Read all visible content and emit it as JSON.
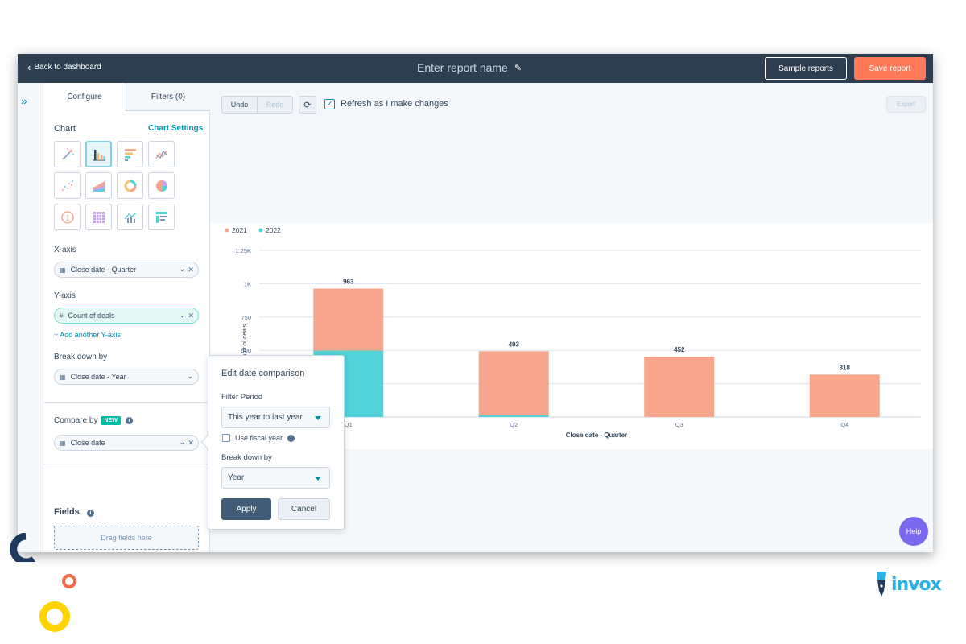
{
  "topbar": {
    "back_label": "Back to dashboard",
    "report_name": "Enter report name",
    "sample_reports_label": "Sample reports",
    "save_report_label": "Save report"
  },
  "sidebar": {
    "tabs": [
      {
        "label": "Configure",
        "active": true
      },
      {
        "label": "Filters (0)",
        "active": false
      }
    ],
    "chart_label": "Chart",
    "chart_settings_label": "Chart Settings",
    "chart_types": [
      "magic-wand",
      "vertical-bar",
      "horizontal-bar",
      "line",
      "scatter",
      "area",
      "donut",
      "pie",
      "summary",
      "pivot-table",
      "combination",
      "table"
    ],
    "selected_chart_type": "vertical-bar",
    "x_axis_label": "X-axis",
    "x_axis_value": "Close date - Quarter",
    "y_axis_label": "Y-axis",
    "y_axis_value": "Count of deals",
    "add_y_axis_label": "Add another Y-axis",
    "break_down_label": "Break down by",
    "break_down_value": "Close date - Year",
    "compare_label": "Compare by",
    "new_badge": "NEW",
    "compare_value": "Close date",
    "fields_label": "Fields",
    "drag_fields_label": "Drag fields here"
  },
  "toolbar": {
    "undo_label": "Undo",
    "redo_label": "Redo",
    "refresh_checkbox_label": "Refresh as I make changes",
    "refresh_checked": true,
    "export_label": "Export"
  },
  "popover": {
    "title": "Edit date comparison",
    "filter_period_label": "Filter Period",
    "filter_period_value": "This year to last year",
    "fiscal_year_label": "Use fiscal year",
    "fiscal_year_checked": false,
    "break_down_label": "Break down by",
    "break_down_value": "Year",
    "apply_label": "Apply",
    "cancel_label": "Cancel"
  },
  "help_label": "Help",
  "logo_text": "invox",
  "colors": {
    "series_2021": "#f8a58d",
    "series_2022": "#51d3d9",
    "accent": "#0091ae",
    "save": "#ff7a59",
    "topbar": "#2d3e50"
  },
  "chart_data": {
    "type": "bar",
    "stacked": true,
    "categories": [
      "Q1",
      "Q2",
      "Q3",
      "Q4"
    ],
    "series": [
      {
        "name": "2021",
        "values": [
          465,
          480,
          452,
          318
        ]
      },
      {
        "name": "2022",
        "values": [
          498,
          13,
          0,
          0
        ]
      }
    ],
    "totals": [
      963,
      493,
      452,
      318
    ],
    "xlabel": "Close date - Quarter",
    "ylabel": "Count of deals",
    "yticks": [
      "500",
      "750",
      "1K",
      "1.25K"
    ],
    "ytick_values": [
      500,
      750,
      1000,
      1250
    ],
    "ylim": [
      0,
      1250
    ],
    "legend_position": "top-left",
    "grid": true
  }
}
